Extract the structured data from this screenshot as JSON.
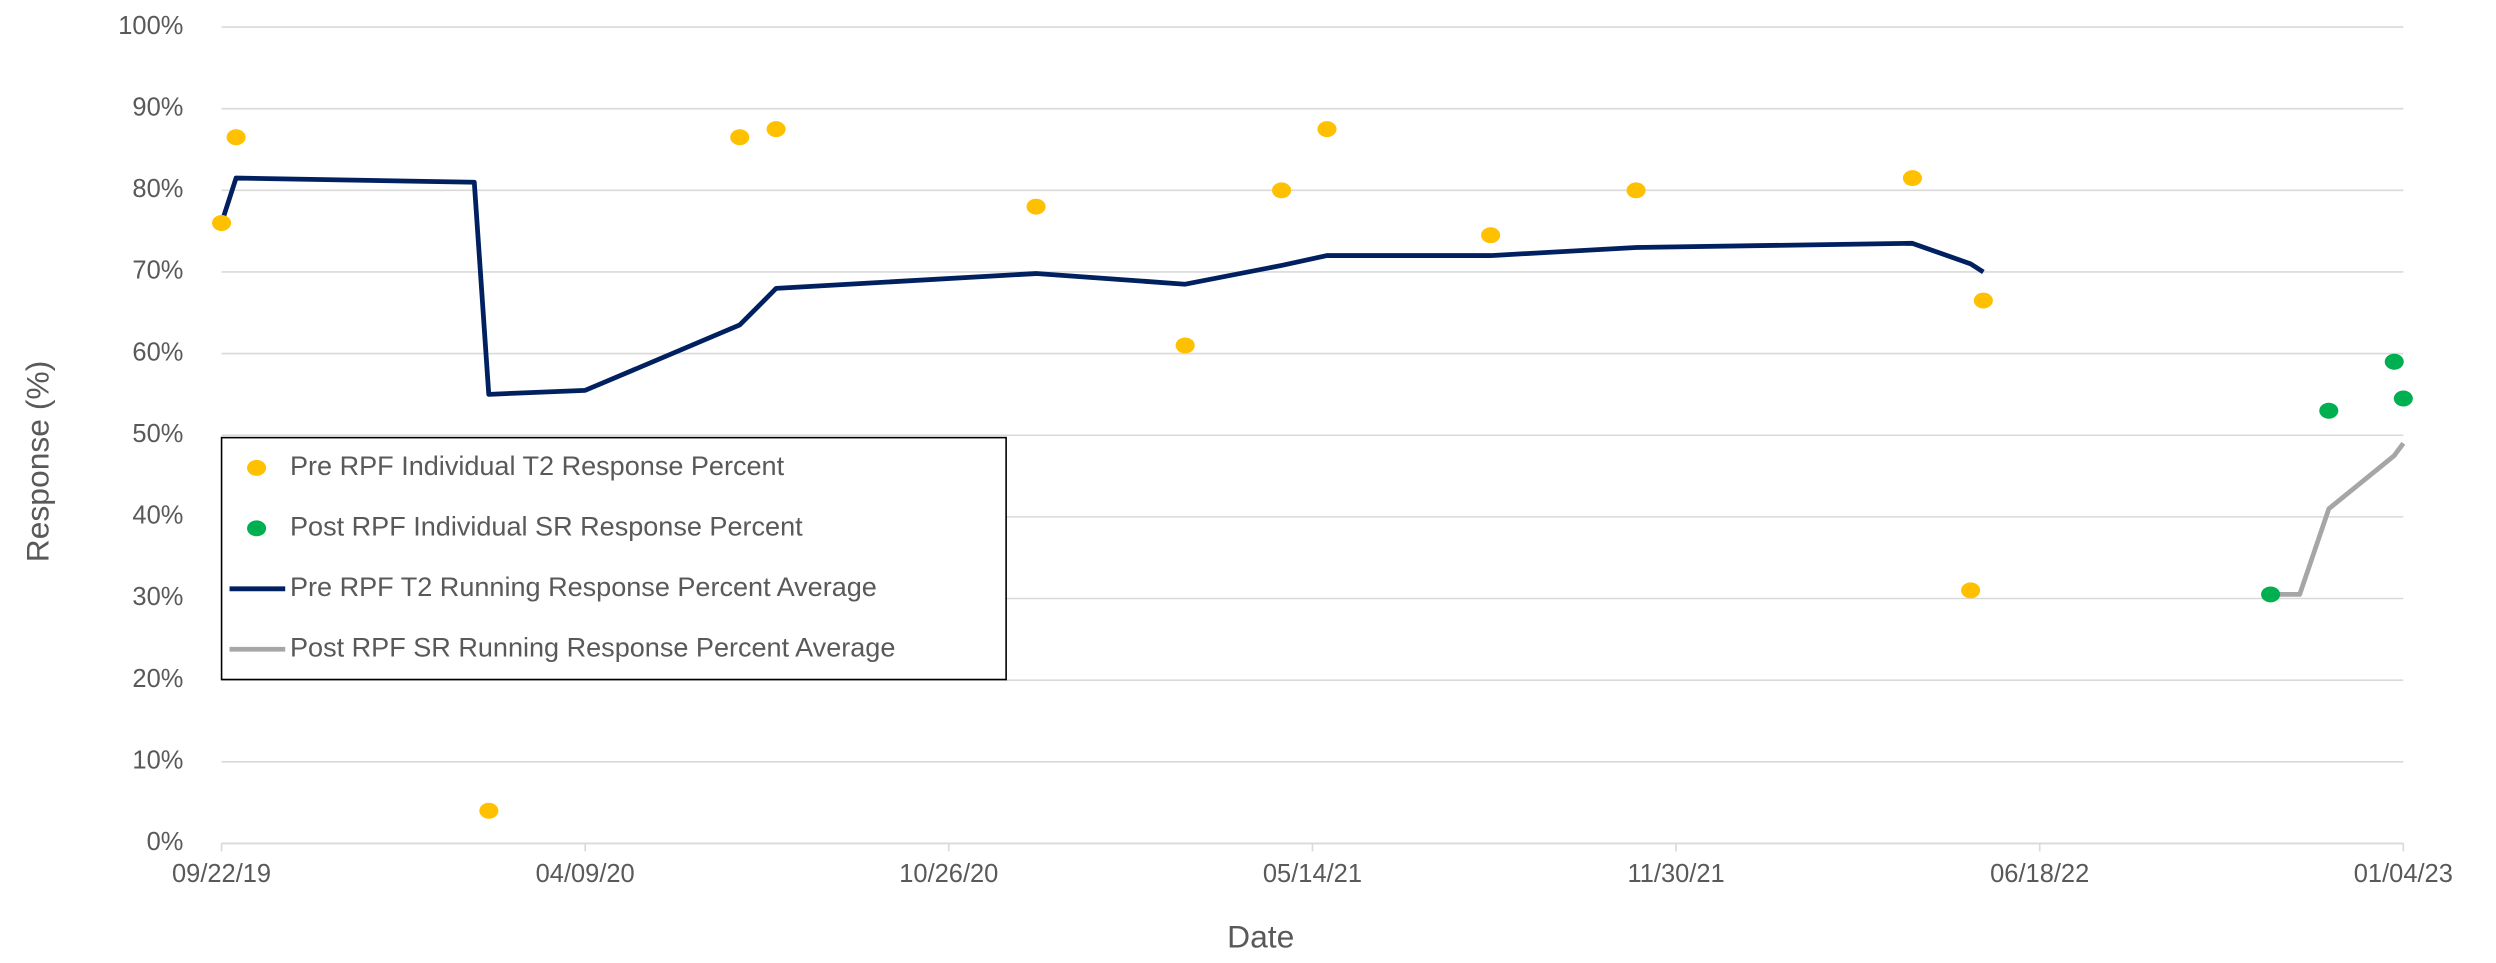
{
  "chart_data": {
    "type": "scatter",
    "x_label": "Date",
    "y_label": "Response (%)",
    "xlim": [
      "2019-09-22",
      "2023-01-04"
    ],
    "xticks": [
      {
        "value": "2019-09-22",
        "label": "09/22/19"
      },
      {
        "value": "2020-04-09",
        "label": "04/09/20"
      },
      {
        "value": "2020-10-26",
        "label": "10/26/20"
      },
      {
        "value": "2021-05-14",
        "label": "05/14/21"
      },
      {
        "value": "2021-11-30",
        "label": "11/30/21"
      },
      {
        "value": "2022-06-18",
        "label": "06/18/22"
      },
      {
        "value": "2023-01-04",
        "label": "01/04/23"
      }
    ],
    "ylim": [
      0,
      100
    ],
    "yticks": [
      {
        "value": 0,
        "label": "0%"
      },
      {
        "value": 10,
        "label": "10%"
      },
      {
        "value": 20,
        "label": "20%"
      },
      {
        "value": 30,
        "label": "30%"
      },
      {
        "value": 40,
        "label": "40%"
      },
      {
        "value": 50,
        "label": "50%"
      },
      {
        "value": 60,
        "label": "60%"
      },
      {
        "value": 70,
        "label": "70%"
      },
      {
        "value": 80,
        "label": "80%"
      },
      {
        "value": 90,
        "label": "90%"
      },
      {
        "value": 100,
        "label": "100%"
      }
    ],
    "grid": true,
    "legend": "lower left",
    "series": [
      {
        "name": "Pre RPF Individual T2 Response Percent",
        "type": "scatter",
        "color": "#FFC000",
        "x": [
          "2019-09-22",
          "2019-09-30",
          "2020-02-16",
          "2020-07-03",
          "2020-07-23",
          "2020-12-13",
          "2021-03-05",
          "2021-04-27",
          "2021-05-22",
          "2021-08-20",
          "2021-11-08",
          "2022-04-09",
          "2022-05-11",
          "2022-05-18"
        ],
        "values": [
          76,
          86.5,
          4,
          86.5,
          87.5,
          78,
          61,
          80,
          87.5,
          74.5,
          80,
          81.5,
          31,
          66.5
        ]
      },
      {
        "name": "Post RPF Individual SR Response Percent",
        "type": "scatter",
        "color": "#00B050",
        "x": [
          "2022-10-23",
          "2022-11-24",
          "2022-12-30",
          "2023-01-04"
        ],
        "values": [
          30.5,
          53,
          59,
          54.5
        ]
      },
      {
        "name": "Pre RPF T2 Running Response Percent Average",
        "type": "line",
        "color": "#002060",
        "x": [
          "2019-09-22",
          "2019-09-30",
          "2020-02-08",
          "2020-02-16",
          "2020-04-09",
          "2020-07-03",
          "2020-07-23",
          "2020-12-13",
          "2021-03-05",
          "2021-04-27",
          "2021-05-22",
          "2021-08-20",
          "2021-11-08",
          "2022-04-09",
          "2022-05-11",
          "2022-05-18"
        ],
        "values": [
          76,
          81.5,
          81,
          55,
          55.5,
          63.5,
          68,
          69.8,
          68.5,
          70.8,
          72,
          72,
          73,
          73.5,
          71,
          70
        ]
      },
      {
        "name": "Post RPF SR Running Response Percent Average",
        "type": "line",
        "color": "#A6A6A6",
        "x": [
          "2022-10-23",
          "2022-11-08",
          "2022-11-24",
          "2022-12-30",
          "2023-01-04"
        ],
        "values": [
          30.5,
          30.5,
          41,
          47.5,
          49
        ]
      }
    ]
  }
}
